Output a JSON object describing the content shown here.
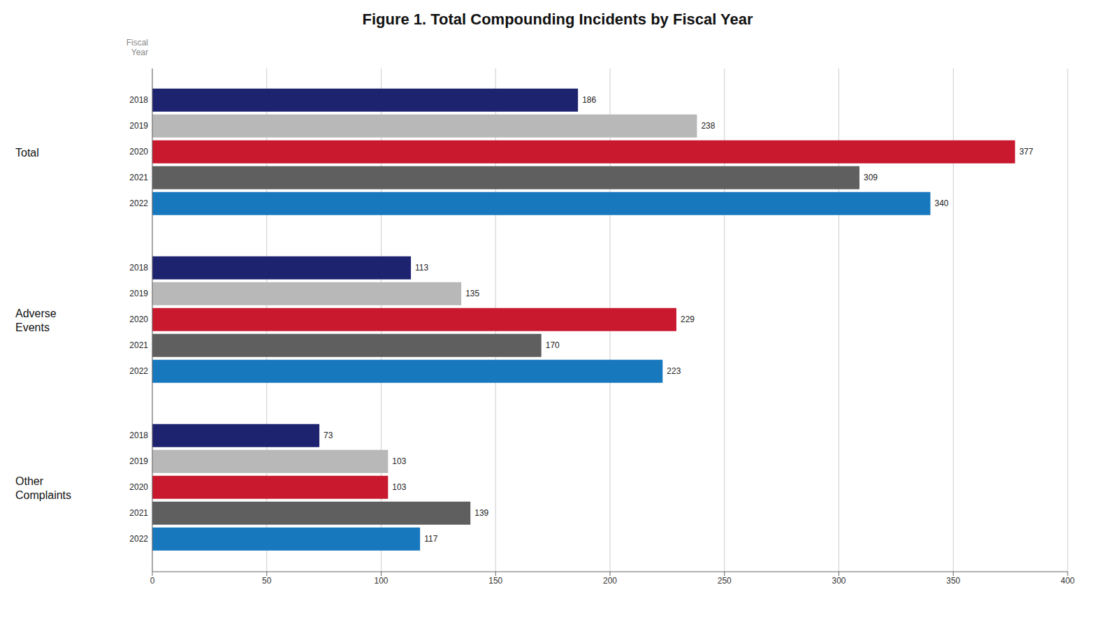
{
  "chart_data": {
    "type": "bar",
    "title": "Figure 1. Total Compounding Incidents by Fiscal Year",
    "orientation": "horizontal",
    "categories": [
      "Total",
      "Adverse\nEvents",
      "Other\nComplaints"
    ],
    "series": [
      {
        "name": "2018",
        "color": "#1e2370",
        "values": [
          186,
          113,
          73
        ]
      },
      {
        "name": "2019",
        "color": "#b8b8b8",
        "values": [
          238,
          135,
          103
        ]
      },
      {
        "name": "2020",
        "color": "#c8192e",
        "values": [
          377,
          229,
          103
        ]
      },
      {
        "name": "2021",
        "color": "#5f5f5f",
        "values": [
          309,
          170,
          139
        ]
      },
      {
        "name": "2022",
        "color": "#1878be",
        "values": [
          340,
          223,
          117
        ]
      }
    ],
    "xlim": [
      0,
      400
    ],
    "xticks": [
      0,
      50,
      100,
      150,
      200,
      250,
      300,
      350,
      400
    ],
    "annotations": [
      "Fiscal\nYear"
    ],
    "data_labels": true,
    "grid": true
  }
}
